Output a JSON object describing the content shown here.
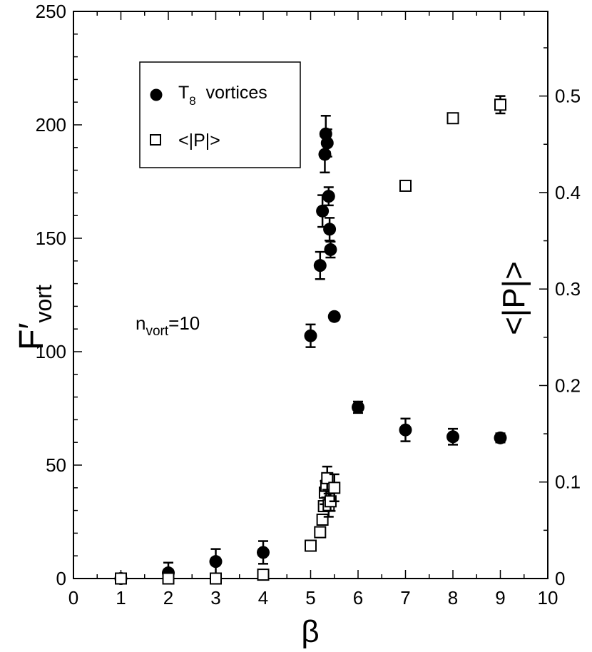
{
  "chart_data": {
    "type": "scatter",
    "xlabel": "β",
    "ylabel_left": {
      "main": "F′",
      "sub": "vort"
    },
    "ylabel_right": "<|P|>",
    "xlim": [
      0,
      10
    ],
    "ylim_left": [
      0,
      250
    ],
    "ylim_right": [
      0,
      0.5877
    ],
    "x_ticks": [
      "0",
      "1",
      "2",
      "3",
      "4",
      "5",
      "6",
      "7",
      "8",
      "9",
      "10"
    ],
    "y_left_ticks": [
      "0",
      "50",
      "100",
      "150",
      "200",
      "250"
    ],
    "y_right_ticks": [
      "0",
      "0.1",
      "0.2",
      "0.3",
      "0.4",
      "0.5"
    ],
    "annotation": {
      "main": "n",
      "sub": "vort",
      "rest": "=10"
    },
    "legend": {
      "position": "top-left",
      "entries": [
        {
          "main": "T",
          "sub": "8",
          "rest": "  vortices",
          "marker": "filled-circle"
        },
        {
          "main": "<|P|>",
          "sub": "",
          "rest": "",
          "marker": "open-square"
        }
      ]
    },
    "series": [
      {
        "name": "T8 vortices",
        "axis": "left",
        "marker": "filled-circle",
        "points": [
          {
            "x": 1.0,
            "y": 0.0,
            "err": 0
          },
          {
            "x": 2.0,
            "y": 2.5,
            "err": 4.5
          },
          {
            "x": 3.0,
            "y": 7.5,
            "err": 5.5
          },
          {
            "x": 4.0,
            "y": 11.5,
            "err": 5.0
          },
          {
            "x": 5.0,
            "y": 107.0,
            "err": 5.0
          },
          {
            "x": 5.2,
            "y": 138.0,
            "err": 6.0
          },
          {
            "x": 5.25,
            "y": 162.0,
            "err": 7.0
          },
          {
            "x": 5.3,
            "y": 187.0,
            "err": 8.0
          },
          {
            "x": 5.32,
            "y": 196.0,
            "err": 8.0
          },
          {
            "x": 5.35,
            "y": 192.0,
            "err": 6.0
          },
          {
            "x": 5.38,
            "y": 168.5,
            "err": 4.0
          },
          {
            "x": 5.4,
            "y": 154.0,
            "err": 5.0
          },
          {
            "x": 5.42,
            "y": 145.0,
            "err": 3.5
          },
          {
            "x": 5.5,
            "y": 115.5,
            "err": 1.5
          },
          {
            "x": 6.0,
            "y": 75.5,
            "err": 2.5
          },
          {
            "x": 7.0,
            "y": 65.5,
            "err": 5.0
          },
          {
            "x": 8.0,
            "y": 62.5,
            "err": 3.5
          },
          {
            "x": 9.0,
            "y": 62.0,
            "err": 2.0
          }
        ]
      },
      {
        "name": "<|P|>",
        "axis": "right",
        "marker": "open-square",
        "points": [
          {
            "x": 1.0,
            "y": 0.0,
            "err": 0
          },
          {
            "x": 2.0,
            "y": 0.0,
            "err": 0
          },
          {
            "x": 3.0,
            "y": 0.0,
            "err": 0
          },
          {
            "x": 4.0,
            "y": 0.004,
            "err": 0
          },
          {
            "x": 5.0,
            "y": 0.034,
            "err": 0
          },
          {
            "x": 5.2,
            "y": 0.048,
            "err": 0
          },
          {
            "x": 5.25,
            "y": 0.061,
            "err": 0
          },
          {
            "x": 5.28,
            "y": 0.075,
            "err": 0
          },
          {
            "x": 5.3,
            "y": 0.089,
            "err": 0.012
          },
          {
            "x": 5.33,
            "y": 0.096,
            "err": 0.012
          },
          {
            "x": 5.35,
            "y": 0.104,
            "err": 0.012
          },
          {
            "x": 5.38,
            "y": 0.076,
            "err": 0.012
          },
          {
            "x": 5.42,
            "y": 0.08,
            "err": 0.01
          },
          {
            "x": 5.5,
            "y": 0.094,
            "err": 0.014
          },
          {
            "x": 7.0,
            "y": 0.407,
            "err": 0
          },
          {
            "x": 8.0,
            "y": 0.477,
            "err": 0
          },
          {
            "x": 9.0,
            "y": 0.491,
            "err": 0.009
          }
        ]
      }
    ]
  }
}
